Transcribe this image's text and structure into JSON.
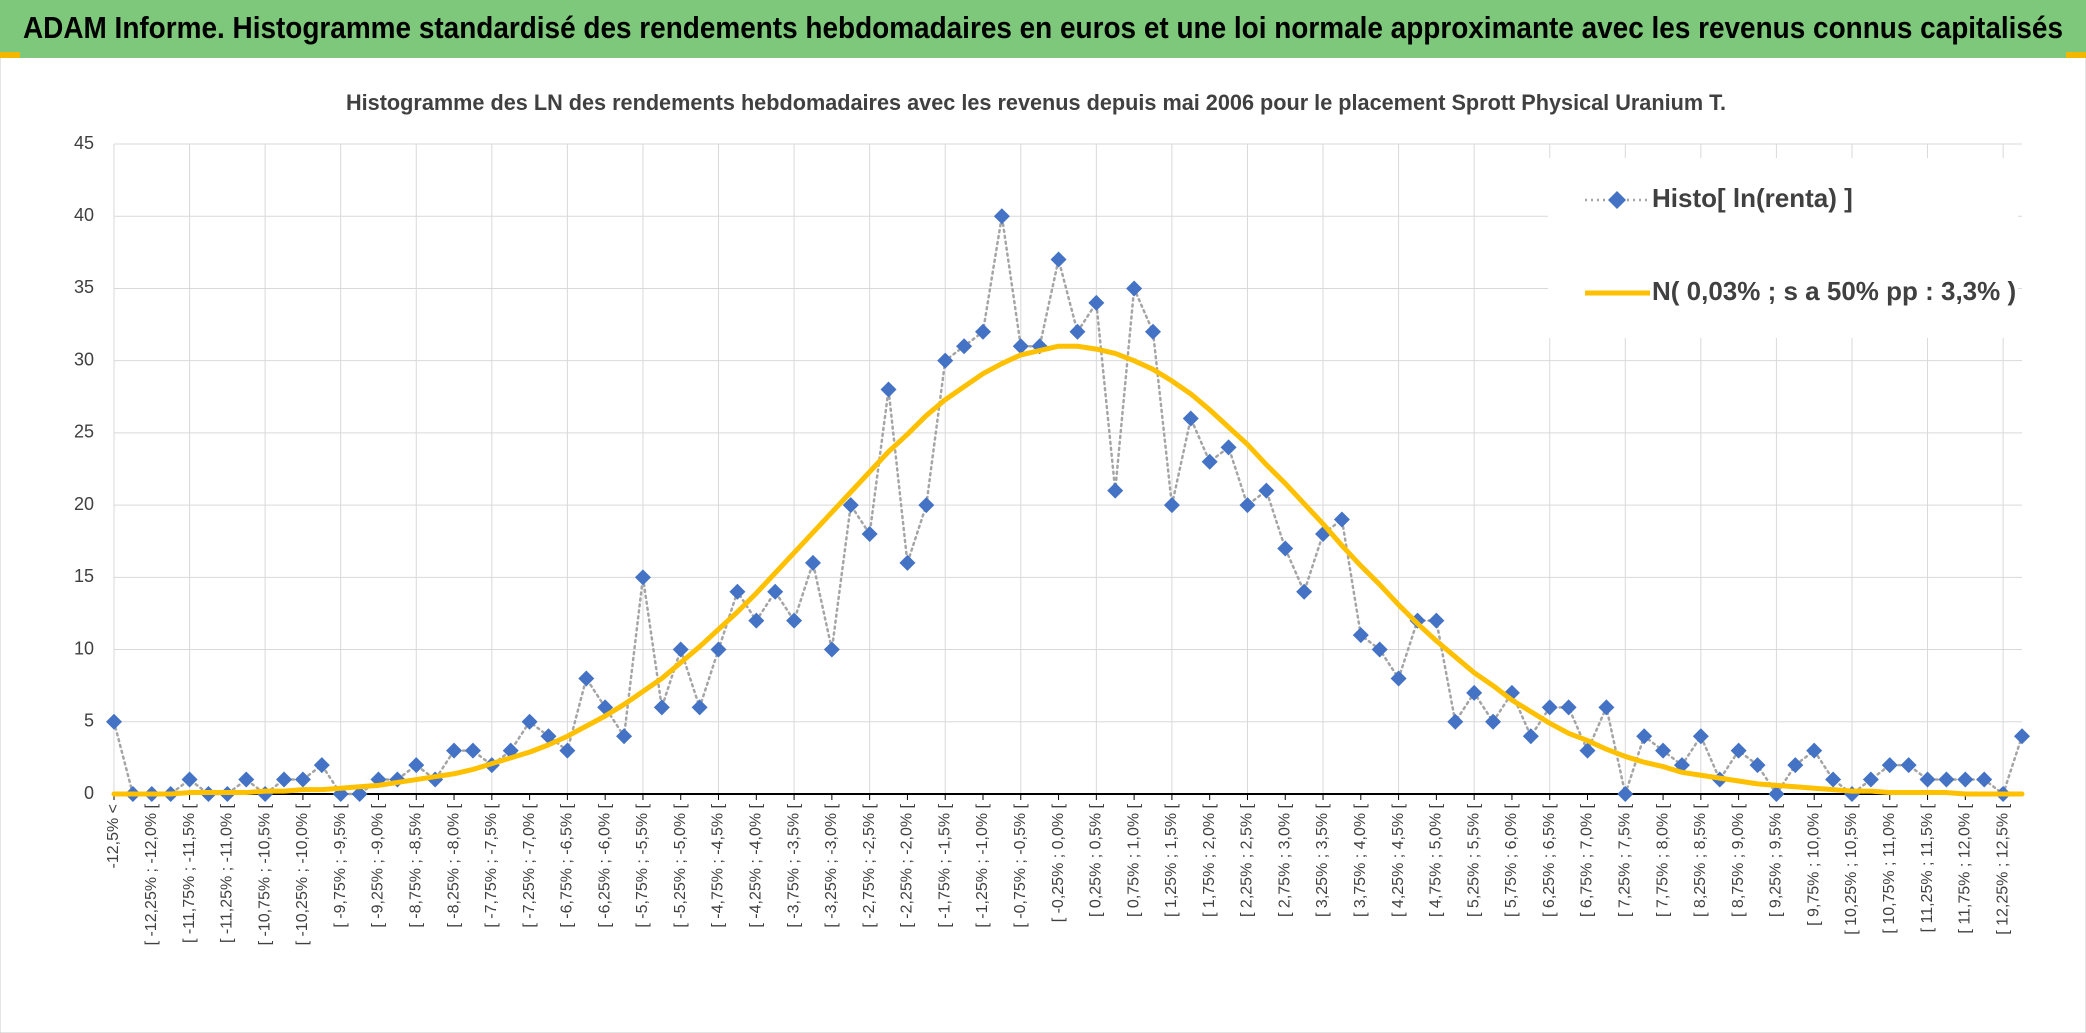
{
  "header": {
    "title": "ADAM Informe. Histogramme standardisé des rendements hebdomadaires en euros et une loi normale approximante avec les revenus connus capitalisés"
  },
  "chart_data": {
    "type": "line",
    "title": "Histogramme des LN des rendements hebdomadaires avec les revenus depuis mai 2006 pour le placement Sprott Physical Uranium T.",
    "categories": [
      "-12,5% <",
      null,
      "[ -12,25% ; -12,0% [",
      null,
      "[ -11,75% ; -11,5% [",
      null,
      "[ -11,25% ; -11,0% [",
      null,
      "[ -10,75% ; -10,5% [",
      null,
      "[ -10,25% ; -10,0% [",
      null,
      "[ -9,75% ; -9,5% [",
      null,
      "[ -9,25% ; -9,0% [",
      null,
      "[ -8,75% ; -8,5% [",
      null,
      "[ -8,25% ; -8,0% [",
      null,
      "[ -7,75% ; -7,5% [",
      null,
      "[ -7,25% ; -7,0% [",
      null,
      "[ -6,75% ; -6,5% [",
      null,
      "[ -6,25% ; -6,0% [",
      null,
      "[ -5,75% ; -5,5% [",
      null,
      "[ -5,25% ; -5,0% [",
      null,
      "[ -4,75% ; -4,5% [",
      null,
      "[ -4,25% ; -4,0% [",
      null,
      "[ -3,75% ; -3,5% [",
      null,
      "[ -3,25% ; -3,0% [",
      null,
      "[ -2,75% ; -2,5% [",
      null,
      "[ -2,25% ; -2,0% [",
      null,
      "[ -1,75% ; -1,5% [",
      null,
      "[ -1,25% ; -1,0% [",
      null,
      "[ -0,75% ; -0,5% [",
      null,
      "[ -0,25% ; 0,0% [",
      null,
      "[ 0,25% ; 0,5% [",
      null,
      "[ 0,75% ; 1,0% [",
      null,
      "[ 1,25% ; 1,5% [",
      null,
      "[ 1,75% ; 2,0% [",
      null,
      "[ 2,25% ; 2,5% [",
      null,
      "[ 2,75% ; 3,0% [",
      null,
      "[ 3,25% ; 3,5% [",
      null,
      "[ 3,75% ; 4,0% [",
      null,
      "[ 4,25% ; 4,5% [",
      null,
      "[ 4,75% ; 5,0% [",
      null,
      "[ 5,25% ; 5,5% [",
      null,
      "[ 5,75% ; 6,0% [",
      null,
      "[ 6,25% ; 6,5% [",
      null,
      "[ 6,75% ; 7,0% [",
      null,
      "[ 7,25% ; 7,5% [",
      null,
      "[ 7,75% ; 8,0% [",
      null,
      "[ 8,25% ; 8,5% [",
      null,
      "[ 8,75% ; 9,0% [",
      null,
      "[ 9,25% ; 9,5% [",
      null,
      "[ 9,75% ; 10,0% [",
      null,
      "[ 10,25% ; 10,5% [",
      null,
      "[ 10,75% ; 11,0% [",
      null,
      "[ 11,25% ; 11,5% [",
      null,
      "[ 11,75% ; 12,0% [",
      null,
      "[ 12,25% ; 12,5% [",
      null
    ],
    "series": [
      {
        "name": "Histo[ ln(renta) ]",
        "color": "#4472c4",
        "line_color": "#a5a5a5",
        "line_style": "dotted",
        "marker": "diamond",
        "values": [
          5,
          0,
          0,
          0,
          1,
          0,
          0,
          1,
          0,
          1,
          1,
          2,
          0,
          0,
          1,
          1,
          2,
          1,
          3,
          3,
          2,
          3,
          5,
          4,
          3,
          8,
          6,
          4,
          15,
          6,
          10,
          6,
          10,
          14,
          12,
          14,
          12,
          16,
          10,
          20,
          18,
          28,
          16,
          20,
          30,
          31,
          32,
          40,
          31,
          31,
          37,
          32,
          34,
          21,
          35,
          32,
          20,
          26,
          23,
          24,
          20,
          21,
          17,
          14,
          18,
          19,
          11,
          10,
          8,
          12,
          12,
          5,
          7,
          5,
          7,
          4,
          6,
          6,
          3,
          6,
          0,
          4,
          3,
          2,
          4,
          1,
          3,
          2,
          0,
          2,
          3,
          1,
          0,
          1,
          2,
          2,
          1,
          1,
          1,
          1,
          0,
          4
        ]
      },
      {
        "name": "N( 0,03% ; s a 50% pp : 3,3% )",
        "color": "#ffc000",
        "line_color": "#ffc000",
        "line_style": "solid",
        "marker": "none",
        "values": [
          0.0,
          0.0,
          0.0,
          0.0,
          0.1,
          0.1,
          0.1,
          0.1,
          0.2,
          0.2,
          0.3,
          0.3,
          0.4,
          0.5,
          0.6,
          0.8,
          1.0,
          1.2,
          1.4,
          1.7,
          2.1,
          2.5,
          2.9,
          3.4,
          4.0,
          4.7,
          5.4,
          6.2,
          7.1,
          8.0,
          9.1,
          10.2,
          11.4,
          12.6,
          13.9,
          15.3,
          16.7,
          18.1,
          19.5,
          20.9,
          22.3,
          23.7,
          24.9,
          26.2,
          27.3,
          28.2,
          29.1,
          29.8,
          30.4,
          30.7,
          31.0,
          31.0,
          30.8,
          30.5,
          30.0,
          29.4,
          28.6,
          27.7,
          26.6,
          25.4,
          24.2,
          22.8,
          21.5,
          20.1,
          18.7,
          17.2,
          15.8,
          14.5,
          13.1,
          11.8,
          10.6,
          9.5,
          8.4,
          7.5,
          6.5,
          5.7,
          4.9,
          4.2,
          3.7,
          3.1,
          2.6,
          2.2,
          1.9,
          1.5,
          1.3,
          1.1,
          0.9,
          0.7,
          0.6,
          0.5,
          0.4,
          0.3,
          0.2,
          0.2,
          0.1,
          0.1,
          0.1,
          0.1,
          0.0,
          0.0,
          0.0,
          0.0
        ]
      }
    ],
    "ylim": [
      0,
      45
    ],
    "yticks": [
      0,
      5,
      10,
      15,
      20,
      25,
      30,
      35,
      40,
      45
    ],
    "grid": true,
    "legend": "upper right"
  }
}
